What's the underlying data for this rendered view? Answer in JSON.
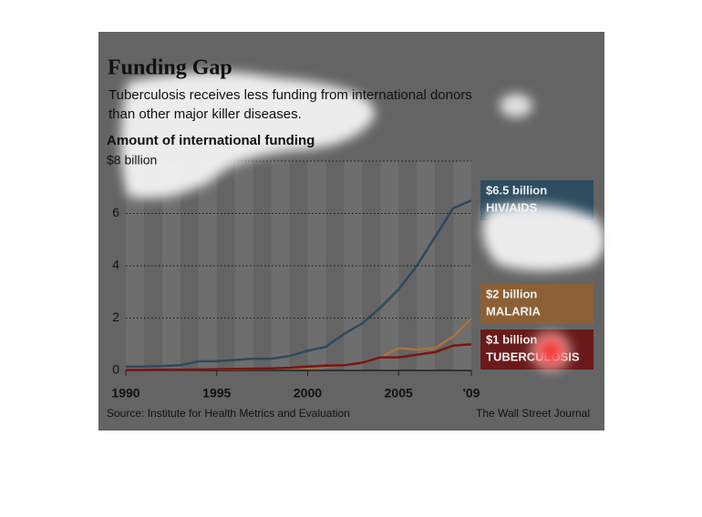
{
  "chart_data": {
    "type": "line",
    "title": "Funding Gap",
    "subtitle": [
      "Tuberculosis receives less funding from international donors",
      "than other major killer diseases."
    ],
    "y_label": "Amount of international funding",
    "source": "Source: Institute for Health Metrics and Evaluation",
    "credit": "The Wall Street Journal",
    "x": [
      1990,
      1991,
      1992,
      1993,
      1994,
      1995,
      1996,
      1997,
      1998,
      1999,
      2000,
      2001,
      2002,
      2003,
      2004,
      2005,
      2006,
      2007,
      2008,
      2009
    ],
    "series": [
      {
        "name": "HIV/AIDS",
        "end_label": "$6.5 billion",
        "color": "#2d4a5c",
        "box_color": "#2e4d60",
        "values": [
          0.15,
          0.15,
          0.17,
          0.2,
          0.35,
          0.35,
          0.4,
          0.45,
          0.45,
          0.55,
          0.75,
          0.9,
          1.4,
          1.8,
          2.4,
          3.1,
          4.0,
          5.1,
          6.2,
          6.5
        ]
      },
      {
        "name": "MALARIA",
        "end_label": "$2 billion",
        "color": "#a8733e",
        "box_color": "#8c6034",
        "values": [
          0.03,
          0.03,
          0.03,
          0.04,
          0.04,
          0.05,
          0.05,
          0.06,
          0.07,
          0.08,
          0.1,
          0.15,
          0.2,
          0.3,
          0.5,
          0.85,
          0.8,
          0.85,
          1.3,
          2.0
        ]
      },
      {
        "name": "TUBERCULOSIS",
        "end_label": "$1 billion",
        "color": "#7a1414",
        "box_color": "#6a1a1a",
        "values": [
          0.02,
          0.02,
          0.03,
          0.03,
          0.04,
          0.05,
          0.06,
          0.07,
          0.08,
          0.1,
          0.15,
          0.18,
          0.2,
          0.3,
          0.5,
          0.5,
          0.6,
          0.7,
          0.95,
          1.0
        ]
      }
    ],
    "xlim": [
      1990,
      2009
    ],
    "xticks": [
      1990,
      1995,
      2000,
      2005,
      {
        "value": 2009,
        "label": "'09"
      }
    ],
    "ylim": [
      0,
      8
    ],
    "yticks": [
      0,
      2,
      4,
      6,
      {
        "value": 8,
        "label": "$8 billion"
      }
    ],
    "grid": true
  }
}
